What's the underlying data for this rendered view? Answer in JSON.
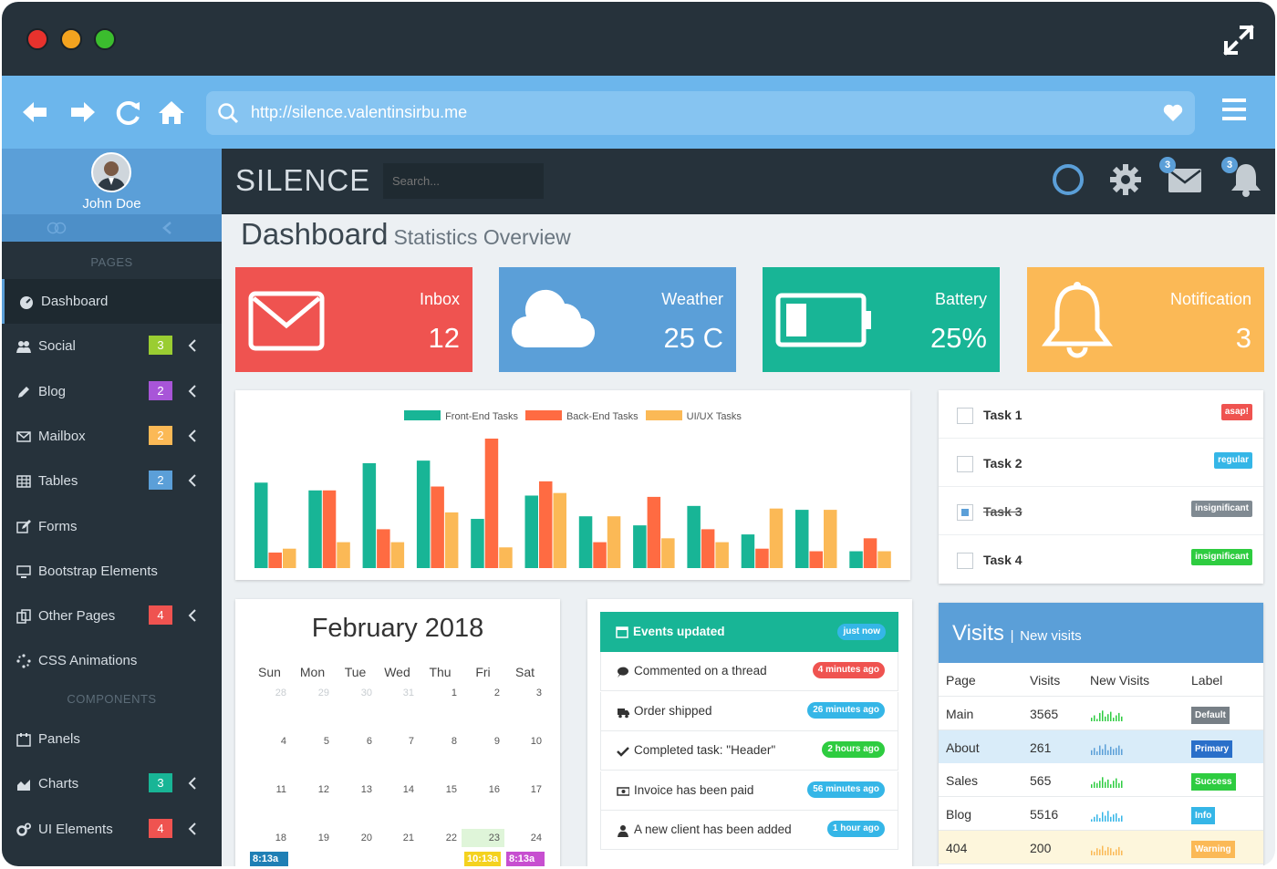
{
  "window": {
    "expand_icon": "expand-arrows-icon"
  },
  "browser": {
    "url": "http://silence.valentinsirbu.me"
  },
  "sidebar": {
    "user_name": "John Doe",
    "section_pages": "PAGES",
    "section_components": "COMPONENTS",
    "items": [
      {
        "label": "Dashboard",
        "icon": "dashboard-icon",
        "badge": "",
        "badge_color": "",
        "chevron": false,
        "active": true
      },
      {
        "label": "Social",
        "icon": "users-icon",
        "badge": "3",
        "badge_color": "#9acd32",
        "chevron": true,
        "active": false
      },
      {
        "label": "Blog",
        "icon": "pencil-icon",
        "badge": "2",
        "badge_color": "#a855d8",
        "chevron": true,
        "active": false
      },
      {
        "label": "Mailbox",
        "icon": "envelope-icon",
        "badge": "2",
        "badge_color": "#fbb956",
        "chevron": true,
        "active": false
      },
      {
        "label": "Tables",
        "icon": "table-icon",
        "badge": "2",
        "badge_color": "#5b9fd8",
        "chevron": true,
        "active": false
      },
      {
        "label": "Forms",
        "icon": "edit-icon",
        "badge": "",
        "badge_color": "",
        "chevron": false,
        "active": false
      },
      {
        "label": "Bootstrap Elements",
        "icon": "monitor-icon",
        "badge": "",
        "badge_color": "",
        "chevron": false,
        "active": false
      },
      {
        "label": "Other Pages",
        "icon": "copy-icon",
        "badge": "4",
        "badge_color": "#ef5350",
        "chevron": true,
        "active": false
      },
      {
        "label": "CSS Animations",
        "icon": "spinner-icon",
        "badge": "",
        "badge_color": "",
        "chevron": false,
        "active": false
      }
    ],
    "components": [
      {
        "label": "Panels",
        "icon": "calendar-icon",
        "badge": "",
        "badge_color": "",
        "chevron": false
      },
      {
        "label": "Charts",
        "icon": "area-chart-icon",
        "badge": "3",
        "badge_color": "#18b596",
        "chevron": true
      },
      {
        "label": "UI Elements",
        "icon": "cogs-icon",
        "badge": "4",
        "badge_color": "#ef5350",
        "chevron": true
      }
    ]
  },
  "header": {
    "brand": "SILENCE",
    "search_placeholder": "Search...",
    "mail_badge": "3",
    "bell_badge": "3"
  },
  "page": {
    "title": "Dashboard",
    "subtitle": "Statistics Overview"
  },
  "tiles": [
    {
      "label": "Inbox",
      "value": "12",
      "color": "#ef5350",
      "icon": "envelope-icon"
    },
    {
      "label": "Weather",
      "value": "25 C",
      "color": "#5b9fd8",
      "icon": "cloud-icon"
    },
    {
      "label": "Battery",
      "value": "25%",
      "color": "#18b596",
      "icon": "battery-icon"
    },
    {
      "label": "Notification",
      "value": "3",
      "color": "#fbb956",
      "icon": "bell-icon"
    }
  ],
  "chart_data": {
    "type": "bar",
    "series": [
      {
        "name": "Front-End Tasks",
        "color": "#18b596",
        "values": [
          66,
          60,
          81,
          83,
          38,
          56,
          40,
          33,
          48,
          26,
          45,
          13
        ]
      },
      {
        "name": "Back-End Tasks",
        "color": "#ff6b42",
        "values": [
          12,
          60,
          30,
          63,
          100,
          67,
          20,
          55,
          30,
          15,
          13,
          23
        ]
      },
      {
        "name": "UI/UX Tasks",
        "color": "#fbb956",
        "values": [
          15,
          20,
          20,
          43,
          16,
          58,
          40,
          23,
          20,
          46,
          45,
          13
        ]
      }
    ],
    "legend": "top",
    "grid": false
  },
  "tasks": [
    {
      "label": "Task 1",
      "tag": "asap!",
      "tag_color": "#ef5350",
      "done": false
    },
    {
      "label": "Task 2",
      "tag": "regular",
      "tag_color": "#35b6e7",
      "done": false
    },
    {
      "label": "Task 3",
      "tag": "insignificant",
      "tag_color": "#808a92",
      "done": true
    },
    {
      "label": "Task 4",
      "tag": "insignificant",
      "tag_color": "#2ecc40",
      "done": false
    }
  ],
  "calendar": {
    "title": "February 2018",
    "dow": [
      "Sun",
      "Mon",
      "Tue",
      "Wed",
      "Thu",
      "Fri",
      "Sat"
    ],
    "weeks": [
      [
        "28",
        "29",
        "30",
        "31",
        "1",
        "2",
        "3"
      ],
      [
        "4",
        "5",
        "6",
        "7",
        "8",
        "9",
        "10"
      ],
      [
        "11",
        "12",
        "13",
        "14",
        "15",
        "16",
        "17"
      ],
      [
        "18",
        "19",
        "20",
        "21",
        "22",
        "23",
        "24"
      ]
    ],
    "events": [
      {
        "label": "8:13a",
        "color": "#1f7fb5"
      },
      {
        "label": "10:13a",
        "color": "#f4d21f"
      },
      {
        "label": "8:13a",
        "color": "#c74fd0"
      }
    ]
  },
  "events": {
    "header": "Events updated",
    "header_pill": "just now",
    "items": [
      {
        "text": "Commented on a thread",
        "pill": "4 minutes ago",
        "pill_color": "#ef5350",
        "icon": "comment-icon"
      },
      {
        "text": "Order shipped",
        "pill": "26 minutes ago",
        "pill_color": "#35b6e7",
        "icon": "truck-icon"
      },
      {
        "text": "Completed task: \"Header\"",
        "pill": "2 hours ago",
        "pill_color": "#2ecc40",
        "icon": "check-icon"
      },
      {
        "text": "Invoice has been paid",
        "pill": "56 minutes ago",
        "pill_color": "#35b6e7",
        "icon": "money-icon"
      },
      {
        "text": "A new client has been added",
        "pill": "1 hour ago",
        "pill_color": "#35b6e7",
        "icon": "user-icon"
      }
    ]
  },
  "visits": {
    "title": "Visits",
    "subtitle": "New visits",
    "columns": [
      "Page",
      "Visits",
      "New Visits",
      "Label"
    ],
    "rows": [
      {
        "page": "Main",
        "visits": "3565",
        "label": "Default",
        "label_color": "#777f86",
        "row_bg": "#ffffff",
        "spark_color": "#2ecc40",
        "spark": [
          3,
          5,
          2,
          7,
          9,
          4,
          6,
          8,
          3,
          5,
          7,
          4
        ]
      },
      {
        "page": "About",
        "visits": "261",
        "label": "Primary",
        "label_color": "#2a6fc9",
        "row_bg": "#d9ecf9",
        "spark_color": "#5b9fd8",
        "spark": [
          4,
          6,
          3,
          8,
          5,
          9,
          4,
          7,
          5,
          6,
          8,
          5
        ]
      },
      {
        "page": "Sales",
        "visits": "565",
        "label": "Success",
        "label_color": "#2ecc40",
        "row_bg": "#ffffff",
        "spark_color": "#2ecc40",
        "spark": [
          3,
          5,
          4,
          6,
          9,
          5,
          7,
          3,
          6,
          8,
          4,
          6
        ]
      },
      {
        "page": "Blog",
        "visits": "5516",
        "label": "Info",
        "label_color": "#35b6e7",
        "row_bg": "#ffffff",
        "spark_color": "#35b6e7",
        "spark": [
          2,
          4,
          6,
          3,
          8,
          5,
          9,
          4,
          6,
          7,
          3,
          5
        ]
      },
      {
        "page": "404",
        "visits": "200",
        "label": "Warning",
        "label_color": "#fbb956",
        "row_bg": "#fdf6dc",
        "spark_color": "#fbb956",
        "spark": [
          4,
          3,
          6,
          5,
          8,
          4,
          7,
          6,
          3,
          5,
          7,
          4
        ]
      }
    ]
  }
}
